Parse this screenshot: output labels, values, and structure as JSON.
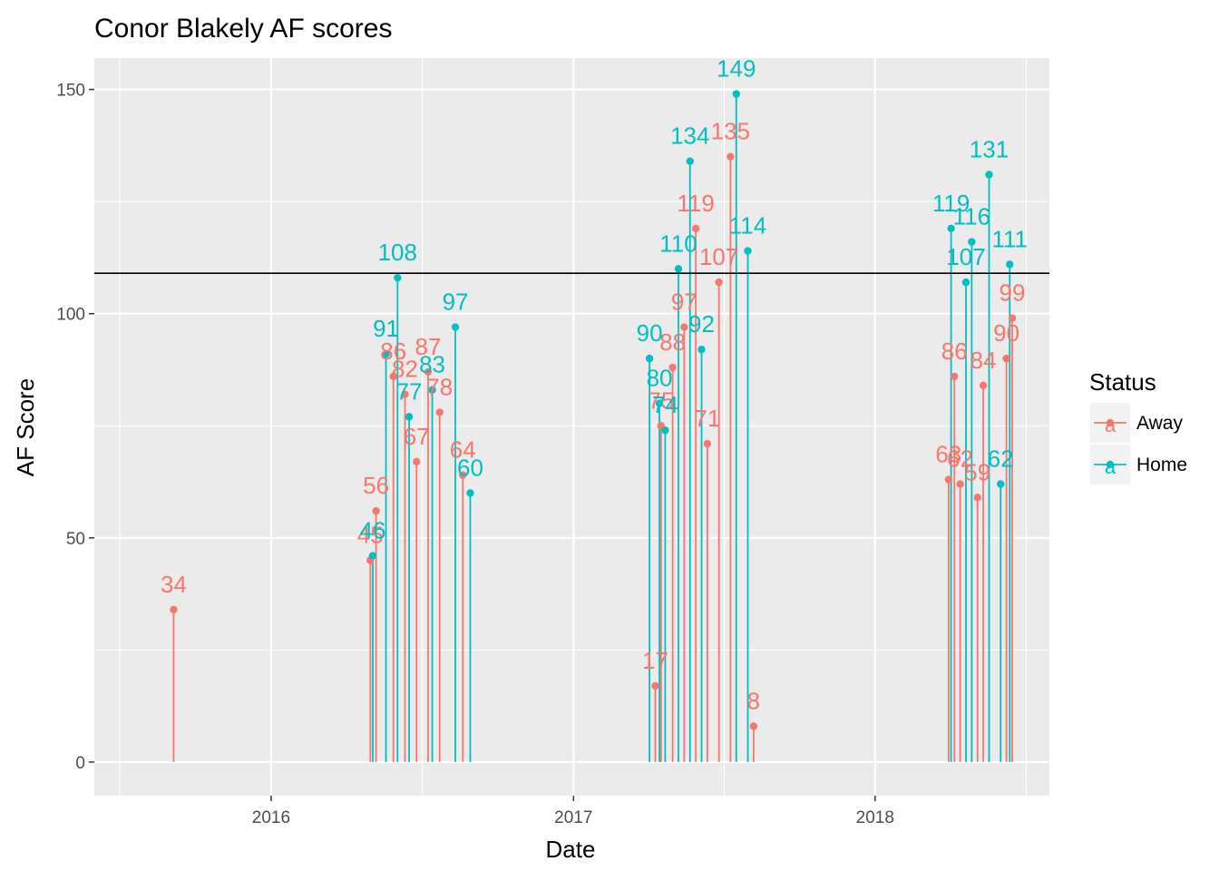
{
  "chart_data": {
    "type": "scatter",
    "title": "Conor Blakely AF scores",
    "xlabel": "Date",
    "ylabel": "AF Score",
    "x_ticks": [
      "2016",
      "2017",
      "2018"
    ],
    "y_ticks": [
      "0",
      "50",
      "100",
      "150"
    ],
    "xlim": [
      "2015-06-01",
      "2018-07-31"
    ],
    "ylim": [
      -7.5,
      157
    ],
    "reference_line": 109,
    "grid": true,
    "legend": {
      "title": "Status",
      "position": "right",
      "key_glyph": "a"
    },
    "series": [
      {
        "name": "Away",
        "color": "#F8766D",
        "points": [
          {
            "date": "2015-09-05",
            "value": 34
          },
          {
            "date": "2016-04-30",
            "value": 45
          },
          {
            "date": "2016-05-07",
            "value": 56
          },
          {
            "date": "2016-05-28",
            "value": 86
          },
          {
            "date": "2016-06-11",
            "value": 82
          },
          {
            "date": "2016-06-25",
            "value": 67
          },
          {
            "date": "2016-07-09",
            "value": 87
          },
          {
            "date": "2016-07-23",
            "value": 78
          },
          {
            "date": "2016-08-20",
            "value": 64
          },
          {
            "date": "2017-04-10",
            "value": 17
          },
          {
            "date": "2017-04-17",
            "value": 75
          },
          {
            "date": "2017-05-01",
            "value": 88
          },
          {
            "date": "2017-05-15",
            "value": 97
          },
          {
            "date": "2017-05-29",
            "value": 119
          },
          {
            "date": "2017-06-12",
            "value": 71
          },
          {
            "date": "2017-06-26",
            "value": 107
          },
          {
            "date": "2017-07-10",
            "value": 135
          },
          {
            "date": "2017-08-07",
            "value": 8
          },
          {
            "date": "2018-03-31",
            "value": 63
          },
          {
            "date": "2018-04-07",
            "value": 86
          },
          {
            "date": "2018-04-14",
            "value": 62
          },
          {
            "date": "2018-05-05",
            "value": 59
          },
          {
            "date": "2018-05-12",
            "value": 84
          },
          {
            "date": "2018-06-09",
            "value": 90
          },
          {
            "date": "2018-06-16",
            "value": 99
          }
        ]
      },
      {
        "name": "Home",
        "color": "#00BFC4",
        "points": [
          {
            "date": "2016-05-03",
            "value": 46
          },
          {
            "date": "2016-05-19",
            "value": 91
          },
          {
            "date": "2016-06-02",
            "value": 108
          },
          {
            "date": "2016-06-16",
            "value": 77
          },
          {
            "date": "2016-07-14",
            "value": 83
          },
          {
            "date": "2016-08-11",
            "value": 97
          },
          {
            "date": "2016-08-29",
            "value": 60
          },
          {
            "date": "2017-04-03",
            "value": 90
          },
          {
            "date": "2017-04-15",
            "value": 80
          },
          {
            "date": "2017-04-22",
            "value": 74
          },
          {
            "date": "2017-05-08",
            "value": 110
          },
          {
            "date": "2017-05-22",
            "value": 134
          },
          {
            "date": "2017-06-05",
            "value": 92
          },
          {
            "date": "2017-07-17",
            "value": 149
          },
          {
            "date": "2017-07-31",
            "value": 114
          },
          {
            "date": "2018-04-03",
            "value": 119
          },
          {
            "date": "2018-04-21",
            "value": 107
          },
          {
            "date": "2018-04-28",
            "value": 116
          },
          {
            "date": "2018-05-19",
            "value": 131
          },
          {
            "date": "2018-06-02",
            "value": 62
          },
          {
            "date": "2018-06-13",
            "value": 111
          }
        ]
      }
    ]
  }
}
